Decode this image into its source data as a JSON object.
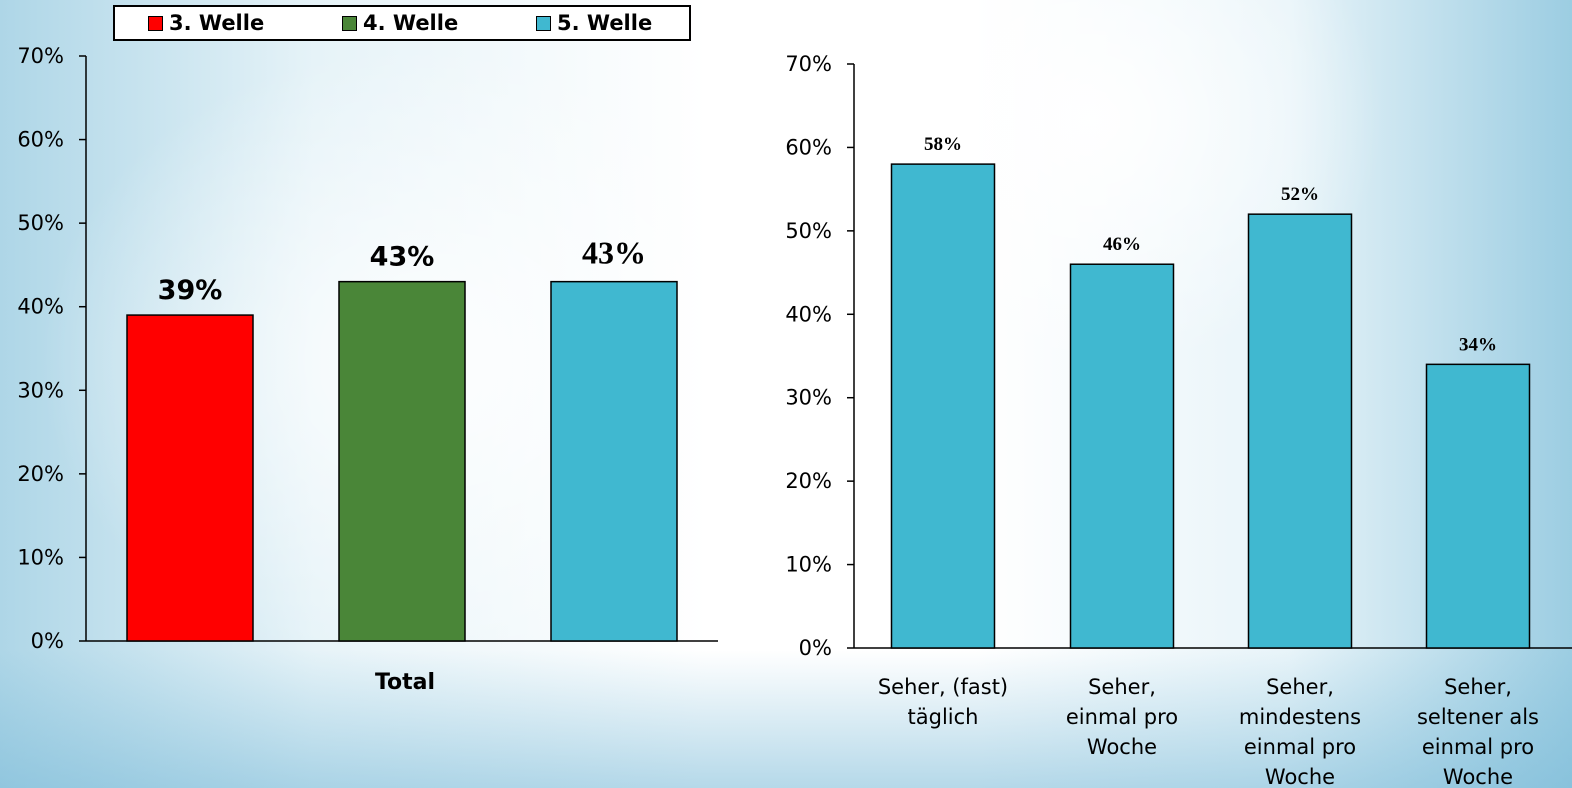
{
  "chart_data": [
    {
      "type": "bar",
      "categories": [
        "Total"
      ],
      "series": [
        {
          "name": "3. Welle",
          "values": [
            39
          ],
          "color": "#ff0000"
        },
        {
          "name": "4. Welle",
          "values": [
            43
          ],
          "color": "#4a8638"
        },
        {
          "name": "5. Welle",
          "values": [
            43
          ],
          "color": "#40b8d0"
        }
      ],
      "data_labels": [
        "39%",
        "43%",
        "43%"
      ],
      "ylim": [
        0,
        70
      ],
      "yticks": [
        "0%",
        "10%",
        "20%",
        "30%",
        "40%",
        "50%",
        "60%",
        "70%"
      ],
      "legend": "top",
      "grid": false
    },
    {
      "type": "bar",
      "categories": [
        [
          "Seher, (fast)",
          "täglich"
        ],
        [
          "Seher,",
          "einmal pro",
          "Woche"
        ],
        [
          "Seher,",
          "mindestens",
          "einmal pro",
          "Woche"
        ],
        [
          "Seher,",
          "seltener als",
          "einmal pro",
          "Woche"
        ]
      ],
      "values": [
        58,
        46,
        52,
        34
      ],
      "data_labels": [
        "58%",
        "46%",
        "52%",
        "34%"
      ],
      "color": "#40b8d0",
      "ylim": [
        0,
        70
      ],
      "yticks": [
        "0%",
        "10%",
        "20%",
        "30%",
        "40%",
        "50%",
        "60%",
        "70%"
      ],
      "grid": false
    }
  ]
}
